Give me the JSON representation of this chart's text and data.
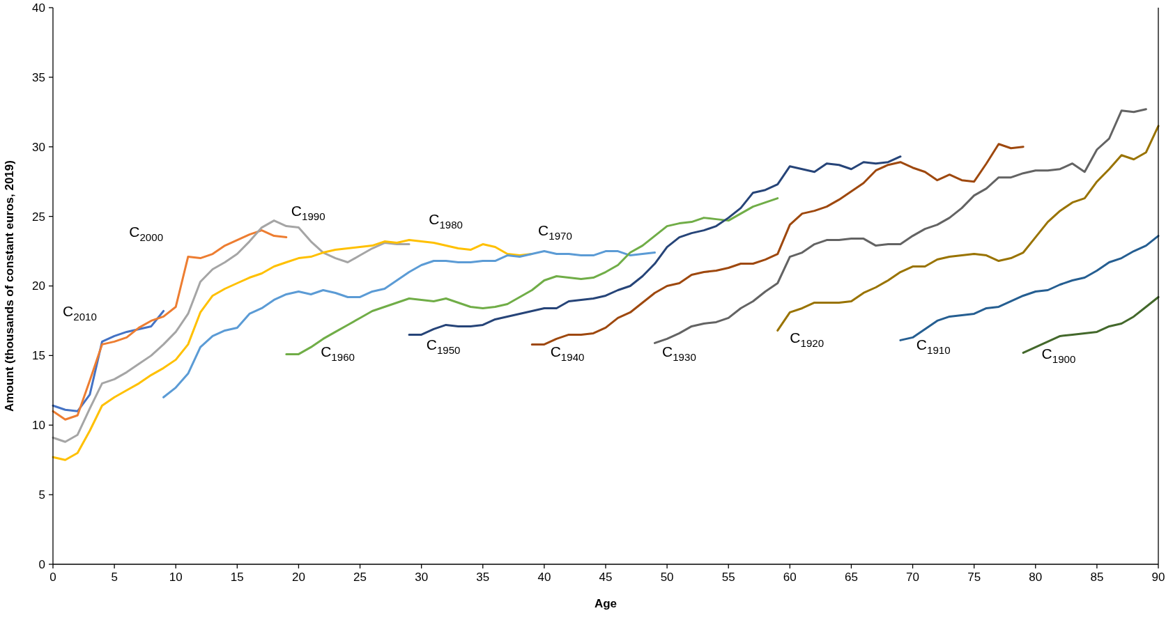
{
  "chart_data": {
    "type": "line",
    "xlabel": "Age",
    "ylabel": "Amount (thousands of constant euros, 2019)",
    "xlim": [
      0,
      90
    ],
    "xticks": [
      0,
      5,
      10,
      15,
      20,
      25,
      30,
      35,
      40,
      45,
      50,
      55,
      60,
      65,
      70,
      75,
      80,
      85,
      90
    ],
    "ylim": [
      0,
      40
    ],
    "yticks": [
      0,
      5,
      10,
      15,
      20,
      25,
      30,
      35,
      40
    ],
    "series": [
      {
        "name": "C$_{2010}$",
        "color": "#4472c4",
        "x": [
          0,
          1,
          2,
          3,
          4,
          5,
          6,
          7,
          8,
          9
        ],
        "values": [
          11.4,
          11.1,
          11.0,
          12.2,
          16.0,
          16.4,
          16.7,
          16.9,
          17.1,
          18.2
        ]
      },
      {
        "name": "C$_{2000}$",
        "color": "#ed7d31",
        "x": [
          0,
          1,
          2,
          3,
          4,
          5,
          6,
          7,
          8,
          9,
          10,
          11,
          12,
          13,
          14,
          15,
          16,
          17,
          18,
          19
        ],
        "values": [
          11.0,
          10.4,
          10.7,
          13.2,
          15.8,
          16.0,
          16.3,
          17.0,
          17.5,
          17.8,
          18.5,
          22.1,
          22.0,
          22.3,
          22.9,
          23.3,
          23.7,
          24.0,
          23.6,
          23.5
        ]
      },
      {
        "name": "C$_{1990}$",
        "color": "#a5a5a5",
        "x": [
          0,
          1,
          2,
          3,
          4,
          5,
          6,
          7,
          8,
          9,
          10,
          11,
          12,
          13,
          14,
          15,
          16,
          17,
          18,
          19,
          20,
          21,
          22,
          23,
          24,
          25,
          26,
          27,
          28,
          29
        ],
        "values": [
          9.1,
          8.8,
          9.3,
          11.2,
          13.0,
          13.3,
          13.8,
          14.4,
          15.0,
          15.8,
          16.7,
          18.0,
          20.3,
          21.2,
          21.7,
          22.3,
          23.2,
          24.2,
          24.7,
          24.3,
          24.2,
          23.2,
          22.4,
          22.0,
          21.7,
          22.2,
          22.7,
          23.1,
          23.0,
          23.0
        ]
      },
      {
        "name": "C$_{1980}$",
        "color": "#ffc000",
        "x": [
          0,
          1,
          2,
          3,
          4,
          5,
          6,
          7,
          8,
          9,
          10,
          11,
          12,
          13,
          14,
          15,
          16,
          17,
          18,
          19,
          20,
          21,
          22,
          23,
          24,
          25,
          26,
          27,
          28,
          29,
          30,
          31,
          32,
          33,
          34,
          35,
          36,
          37,
          38,
          39
        ],
        "values": [
          7.7,
          7.5,
          8.0,
          9.6,
          11.4,
          12.0,
          12.5,
          13.0,
          13.6,
          14.1,
          14.7,
          15.8,
          18.1,
          19.3,
          19.8,
          20.2,
          20.6,
          20.9,
          21.4,
          21.7,
          22.0,
          22.1,
          22.4,
          22.6,
          22.7,
          22.8,
          22.9,
          23.2,
          23.1,
          23.3,
          23.2,
          23.1,
          22.9,
          22.7,
          22.6,
          23.0,
          22.8,
          22.3,
          22.2,
          22.3
        ]
      },
      {
        "name": "C$_{1970}$",
        "color": "#5b9bd5",
        "x": [
          9,
          10,
          11,
          12,
          13,
          14,
          15,
          16,
          17,
          18,
          19,
          20,
          21,
          22,
          23,
          24,
          25,
          26,
          27,
          28,
          29,
          30,
          31,
          32,
          33,
          34,
          35,
          36,
          37,
          38,
          39,
          40,
          41,
          42,
          43,
          44,
          45,
          46,
          47,
          48,
          49
        ],
        "values": [
          12.0,
          12.7,
          13.7,
          15.6,
          16.4,
          16.8,
          17.0,
          18.0,
          18.4,
          19.0,
          19.4,
          19.6,
          19.4,
          19.7,
          19.5,
          19.2,
          19.2,
          19.6,
          19.8,
          20.4,
          21.0,
          21.5,
          21.8,
          21.8,
          21.7,
          21.7,
          21.8,
          21.8,
          22.2,
          22.1,
          22.3,
          22.5,
          22.3,
          22.3,
          22.2,
          22.2,
          22.5,
          22.5,
          22.2,
          22.3,
          22.4
        ]
      },
      {
        "name": "C$_{1960}$",
        "color": "#70ad47",
        "x": [
          19,
          20,
          21,
          22,
          23,
          24,
          25,
          26,
          27,
          28,
          29,
          30,
          31,
          32,
          33,
          34,
          35,
          36,
          37,
          38,
          39,
          40,
          41,
          42,
          43,
          44,
          45,
          46,
          47,
          48,
          49,
          50,
          51,
          52,
          53,
          54,
          55,
          56,
          57,
          58,
          59
        ],
        "values": [
          15.1,
          15.1,
          15.6,
          16.2,
          16.7,
          17.2,
          17.7,
          18.2,
          18.5,
          18.8,
          19.1,
          19.0,
          18.9,
          19.1,
          18.8,
          18.5,
          18.4,
          18.5,
          18.7,
          19.2,
          19.7,
          20.4,
          20.7,
          20.6,
          20.5,
          20.6,
          21.0,
          21.5,
          22.4,
          22.9,
          23.6,
          24.3,
          24.5,
          24.6,
          24.9,
          24.8,
          24.7,
          25.2,
          25.7,
          26.0,
          26.3
        ]
      },
      {
        "name": "C$_{1950}$",
        "color": "#264478",
        "x": [
          29,
          30,
          31,
          32,
          33,
          34,
          35,
          36,
          37,
          38,
          39,
          40,
          41,
          42,
          43,
          44,
          45,
          46,
          47,
          48,
          49,
          50,
          51,
          52,
          53,
          54,
          55,
          56,
          57,
          58,
          59,
          60,
          61,
          62,
          63,
          64,
          65,
          66,
          67,
          68,
          69
        ],
        "values": [
          16.5,
          16.5,
          16.9,
          17.2,
          17.1,
          17.1,
          17.2,
          17.6,
          17.8,
          18.0,
          18.2,
          18.4,
          18.4,
          18.9,
          19.0,
          19.1,
          19.3,
          19.7,
          20.0,
          20.7,
          21.6,
          22.8,
          23.5,
          23.8,
          24.0,
          24.3,
          24.9,
          25.6,
          26.7,
          26.9,
          27.3,
          28.6,
          28.4,
          28.2,
          28.8,
          28.7,
          28.4,
          28.9,
          28.8,
          28.9,
          29.3
        ]
      },
      {
        "name": "C$_{1940}$",
        "color": "#9e480e",
        "x": [
          39,
          40,
          41,
          42,
          43,
          44,
          45,
          46,
          47,
          48,
          49,
          50,
          51,
          52,
          53,
          54,
          55,
          56,
          57,
          58,
          59,
          60,
          61,
          62,
          63,
          64,
          65,
          66,
          67,
          68,
          69,
          70,
          71,
          72,
          73,
          74,
          75,
          76,
          77,
          78,
          79
        ],
        "values": [
          15.8,
          15.8,
          16.2,
          16.5,
          16.5,
          16.6,
          17.0,
          17.7,
          18.1,
          18.8,
          19.5,
          20.0,
          20.2,
          20.8,
          21.0,
          21.1,
          21.3,
          21.6,
          21.6,
          21.9,
          22.3,
          24.4,
          25.2,
          25.4,
          25.7,
          26.2,
          26.8,
          27.4,
          28.3,
          28.7,
          28.9,
          28.5,
          28.2,
          27.6,
          28.0,
          27.6,
          27.5,
          28.8,
          30.2,
          29.9,
          30.0
        ]
      },
      {
        "name": "C$_{1930}$",
        "color": "#636363",
        "x": [
          49,
          50,
          51,
          52,
          53,
          54,
          55,
          56,
          57,
          58,
          59,
          60,
          61,
          62,
          63,
          64,
          65,
          66,
          67,
          68,
          69,
          70,
          71,
          72,
          73,
          74,
          75,
          76,
          77,
          78,
          79,
          80,
          81,
          82,
          83,
          84,
          85,
          86,
          87,
          88,
          89
        ],
        "values": [
          15.9,
          16.2,
          16.6,
          17.1,
          17.3,
          17.4,
          17.7,
          18.4,
          18.9,
          19.6,
          20.2,
          22.1,
          22.4,
          23.0,
          23.3,
          23.3,
          23.4,
          23.4,
          22.9,
          23.0,
          23.0,
          23.6,
          24.1,
          24.4,
          24.9,
          25.6,
          26.5,
          27.0,
          27.8,
          27.8,
          28.1,
          28.3,
          28.3,
          28.4,
          28.8,
          28.2,
          29.8,
          30.6,
          32.6,
          32.5,
          32.7
        ]
      },
      {
        "name": "C$_{1920}$",
        "color": "#997300",
        "x": [
          59,
          60,
          61,
          62,
          63,
          64,
          65,
          66,
          67,
          68,
          69,
          70,
          71,
          72,
          73,
          74,
          75,
          76,
          77,
          78,
          79,
          80,
          81,
          82,
          83,
          84,
          85,
          86,
          87,
          88,
          89,
          90
        ],
        "values": [
          16.8,
          18.1,
          18.4,
          18.8,
          18.8,
          18.8,
          18.9,
          19.5,
          19.9,
          20.4,
          21.0,
          21.4,
          21.4,
          21.9,
          22.1,
          22.2,
          22.3,
          22.2,
          21.8,
          22.0,
          22.4,
          23.5,
          24.6,
          25.4,
          26.0,
          26.3,
          27.5,
          28.4,
          29.4,
          29.1,
          29.6,
          31.5
        ]
      },
      {
        "name": "C$_{1910}$",
        "color": "#255e91",
        "x": [
          69,
          70,
          71,
          72,
          73,
          74,
          75,
          76,
          77,
          78,
          79,
          80,
          81,
          82,
          83,
          84,
          85,
          86,
          87,
          88,
          89,
          90
        ],
        "values": [
          16.1,
          16.3,
          16.9,
          17.5,
          17.8,
          17.9,
          18.0,
          18.4,
          18.5,
          18.9,
          19.3,
          19.6,
          19.7,
          20.1,
          20.4,
          20.6,
          21.1,
          21.7,
          22.0,
          22.5,
          22.9,
          23.6
        ]
      },
      {
        "name": "C$_{1900}$",
        "color": "#43682b",
        "x": [
          79,
          80,
          81,
          82,
          83,
          84,
          85,
          86,
          87,
          88,
          89,
          90
        ],
        "values": [
          15.2,
          15.6,
          16.0,
          16.4,
          16.5,
          16.6,
          16.7,
          17.1,
          17.3,
          17.8,
          18.5,
          19.2
        ]
      }
    ]
  }
}
